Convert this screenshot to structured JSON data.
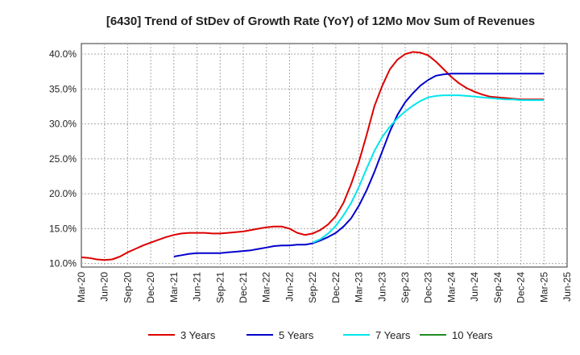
{
  "chart_data": {
    "type": "line",
    "title": "[6430]  Trend of StDev of Growth Rate (YoY) of 12Mo Mov Sum of Revenues",
    "xlabel": "",
    "ylabel": "",
    "ylim": [
      9.5,
      41.5
    ],
    "y_ticks": [
      10,
      15,
      20,
      25,
      30,
      35,
      40
    ],
    "y_tick_labels": [
      "10.0%",
      "15.0%",
      "20.0%",
      "25.0%",
      "30.0%",
      "35.0%",
      "40.0%"
    ],
    "x_tick_labels": [
      "Mar-20",
      "Jun-20",
      "Sep-20",
      "Dec-20",
      "Mar-21",
      "Jun-21",
      "Sep-21",
      "Dec-21",
      "Mar-22",
      "Jun-22",
      "Sep-22",
      "Dec-22",
      "Mar-23",
      "Jun-23",
      "Sep-23",
      "Dec-23",
      "Mar-24",
      "Jun-24",
      "Sep-24",
      "Dec-24",
      "Mar-25",
      "Jun-25"
    ],
    "x_start": "Mar-20",
    "x_unit": "months since Mar-20",
    "grid": true,
    "legend_position": "bottom",
    "series": [
      {
        "name": "3 Years",
        "color": "#dd0000",
        "x": [
          0,
          1,
          2,
          3,
          4,
          5,
          6,
          7,
          8,
          9,
          10,
          11,
          12,
          13,
          14,
          15,
          16,
          17,
          18,
          19,
          20,
          21,
          22,
          23,
          24,
          25,
          26,
          27,
          28,
          29,
          30,
          31,
          32,
          33,
          34,
          35,
          36,
          37,
          38,
          39,
          40,
          41,
          42,
          43,
          44,
          45,
          46,
          47,
          48,
          49,
          50,
          51,
          52,
          53,
          54,
          55,
          56,
          57,
          58,
          59,
          60
        ],
        "values": [
          10.9,
          10.8,
          10.6,
          10.5,
          10.6,
          11.0,
          11.6,
          12.1,
          12.6,
          13.0,
          13.4,
          13.8,
          14.1,
          14.3,
          14.4,
          14.4,
          14.4,
          14.3,
          14.3,
          14.4,
          14.5,
          14.6,
          14.8,
          15.0,
          15.2,
          15.3,
          15.3,
          15.0,
          14.4,
          14.1,
          14.3,
          14.8,
          15.6,
          16.8,
          18.7,
          21.4,
          24.6,
          28.4,
          32.5,
          35.4,
          37.8,
          39.2,
          40.0,
          40.3,
          40.2,
          39.8,
          38.9,
          37.8,
          36.7,
          35.8,
          35.1,
          34.6,
          34.2,
          33.9,
          33.8,
          33.7,
          33.6,
          33.5,
          33.5,
          33.5,
          33.5
        ]
      },
      {
        "name": "5 Years",
        "color": "#0000cc",
        "x": [
          12,
          13,
          14,
          15,
          16,
          17,
          18,
          19,
          20,
          21,
          22,
          23,
          24,
          25,
          26,
          27,
          28,
          29,
          30,
          31,
          32,
          33,
          34,
          35,
          36,
          37,
          38,
          39,
          40,
          41,
          42,
          43,
          44,
          45,
          46,
          47,
          48,
          49,
          50,
          51,
          52,
          53,
          54,
          55,
          56,
          57,
          58,
          59,
          60
        ],
        "values": [
          11.0,
          11.2,
          11.4,
          11.5,
          11.5,
          11.5,
          11.5,
          11.6,
          11.7,
          11.8,
          11.9,
          12.1,
          12.3,
          12.5,
          12.6,
          12.6,
          12.7,
          12.7,
          12.9,
          13.3,
          13.8,
          14.4,
          15.3,
          16.5,
          18.3,
          20.5,
          23.1,
          26.0,
          28.9,
          31.3,
          33.1,
          34.4,
          35.5,
          36.3,
          36.9,
          37.1,
          37.2,
          37.2,
          37.2,
          37.2,
          37.2,
          37.2,
          37.2,
          37.2,
          37.2,
          37.2,
          37.2,
          37.2,
          37.2
        ]
      },
      {
        "name": "7 Years",
        "color": "#00e5ee",
        "x": [
          30,
          31,
          32,
          33,
          34,
          35,
          36,
          37,
          38,
          39,
          40,
          41,
          42,
          43,
          44,
          45,
          46,
          47,
          48,
          49,
          50,
          51,
          52,
          53,
          54,
          55,
          56,
          57,
          58,
          59,
          60
        ],
        "values": [
          13.0,
          13.5,
          14.3,
          15.4,
          16.9,
          18.7,
          21.0,
          23.6,
          26.1,
          28.1,
          29.6,
          30.8,
          31.8,
          32.6,
          33.3,
          33.8,
          34.0,
          34.1,
          34.1,
          34.1,
          34.0,
          33.9,
          33.8,
          33.7,
          33.6,
          33.5,
          33.5,
          33.4,
          33.4,
          33.4,
          33.4
        ]
      },
      {
        "name": "10 Years",
        "color": "#228b22",
        "x": [],
        "values": []
      }
    ]
  }
}
